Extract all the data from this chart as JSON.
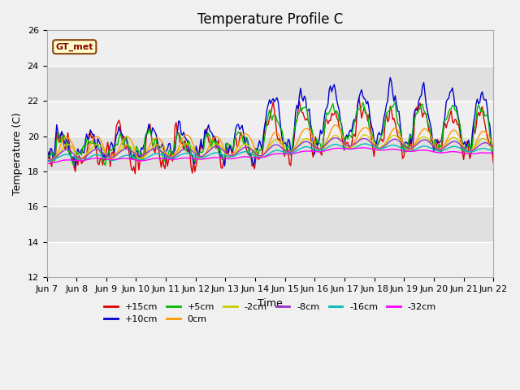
{
  "title": "Temperature Profile C",
  "xlabel": "Time",
  "ylabel": "Temperature (C)",
  "ylim": [
    12,
    26
  ],
  "yticks": [
    12,
    14,
    16,
    18,
    20,
    22,
    24,
    26
  ],
  "xtick_labels": [
    "Jun 7",
    "Jun 8",
    "Jun 9",
    "Jun 10",
    "Jun 11",
    "Jun 12",
    "Jun 13",
    "Jun 14",
    "Jun 15",
    "Jun 16",
    "Jun 17",
    "Jun 18",
    "Jun 19",
    "Jun 20",
    "Jun 21",
    "Jun 22"
  ],
  "series_labels": [
    "+15cm",
    "+10cm",
    "+5cm",
    "0cm",
    "-2cm",
    "-8cm",
    "-16cm",
    "-32cm"
  ],
  "series_colors": [
    "#dd0000",
    "#0000cc",
    "#00bb00",
    "#ff9900",
    "#cccc00",
    "#9933cc",
    "#00bbbb",
    "#ff00ff"
  ],
  "annotation_text": "GT_met",
  "fig_bg_color": "#f0f0f0",
  "plot_bg_color": "#e0e0e0",
  "title_fontsize": 12,
  "axis_label_fontsize": 9,
  "tick_fontsize": 8,
  "legend_fontsize": 8
}
